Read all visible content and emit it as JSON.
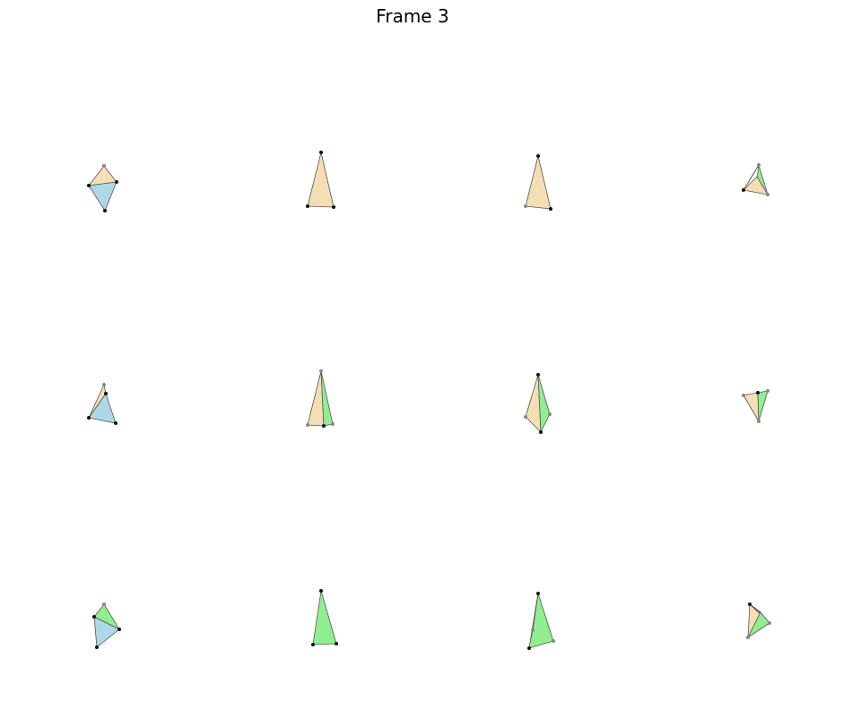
{
  "figure": {
    "title": "Frame 3"
  },
  "palette": {
    "wheat": "#f5deb3",
    "lightblue": "#add8e6",
    "lightgreen": "#90ee90",
    "red": "#e06060",
    "dark_vertex": "#111111",
    "light_vertex": "#888888",
    "edge": "#555555"
  },
  "panels": [
    {
      "name": "r1c1",
      "faces": [
        {
          "color": "wheat",
          "pts": [
            [
              99,
              207
            ],
            [
              116,
              185
            ],
            [
              130,
              203
            ]
          ]
        },
        {
          "color": "lightblue",
          "pts": [
            [
              99,
              207
            ],
            [
              130,
              203
            ],
            [
              117,
              235
            ]
          ]
        }
      ],
      "vertices": [
        [
          99,
          207,
          "d"
        ],
        [
          116,
          185,
          "l"
        ],
        [
          130,
          203,
          "d"
        ],
        [
          117,
          235,
          "d"
        ]
      ]
    },
    {
      "name": "r1c2",
      "faces": [
        {
          "color": "wheat",
          "pts": [
            [
              358,
              170
            ],
            [
              343,
              230
            ],
            [
              372,
              231
            ]
          ]
        }
      ],
      "vertices": [
        [
          358,
          170,
          "d"
        ],
        [
          343,
          230,
          "d"
        ],
        [
          372,
          231,
          "d"
        ]
      ]
    },
    {
      "name": "r1c3",
      "faces": [
        {
          "color": "wheat",
          "pts": [
            [
              600,
              174
            ],
            [
              586,
              230
            ],
            [
              614,
              233
            ]
          ]
        }
      ],
      "vertices": [
        [
          600,
          174,
          "d"
        ],
        [
          586,
          230,
          "l"
        ],
        [
          614,
          233,
          "d"
        ]
      ]
    },
    {
      "name": "r1c4",
      "faces": [
        {
          "color": "red",
          "pts": [
            [
              829,
              212
            ],
            [
              846,
              184
            ],
            [
              839,
              196
            ]
          ]
        },
        {
          "color": "lightgreen",
          "pts": [
            [
              846,
              184
            ],
            [
              856,
              217
            ],
            [
              844,
              200
            ]
          ]
        },
        {
          "color": "wheat",
          "pts": [
            [
              829,
              212
            ],
            [
              844,
              197
            ],
            [
              856,
              217
            ]
          ]
        }
      ],
      "vertices": [
        [
          829,
          212,
          "d"
        ],
        [
          846,
          184,
          "l"
        ],
        [
          856,
          217,
          "l"
        ]
      ]
    },
    {
      "name": "r2c1",
      "faces": [
        {
          "color": "wheat",
          "pts": [
            [
              99,
              466
            ],
            [
              116,
              429
            ],
            [
              118,
              439
            ]
          ]
        },
        {
          "color": "lightblue",
          "pts": [
            [
              99,
              466
            ],
            [
              118,
              439
            ],
            [
              129,
              472
            ]
          ]
        }
      ],
      "vertices": [
        [
          99,
          466,
          "d"
        ],
        [
          116,
          429,
          "l"
        ],
        [
          118,
          439,
          "d"
        ],
        [
          129,
          472,
          "d"
        ]
      ]
    },
    {
      "name": "r2c2",
      "faces": [
        {
          "color": "wheat",
          "pts": [
            [
              358,
              414
            ],
            [
              343,
              474
            ],
            [
              361,
              475
            ]
          ]
        },
        {
          "color": "lightgreen",
          "pts": [
            [
              358,
              414
            ],
            [
              361,
              475
            ],
            [
              371,
              473
            ]
          ]
        }
      ],
      "vertices": [
        [
          358,
          414,
          "l"
        ],
        [
          343,
          474,
          "l"
        ],
        [
          361,
          475,
          "d"
        ],
        [
          371,
          473,
          "l"
        ]
      ]
    },
    {
      "name": "r2c3",
      "faces": [
        {
          "color": "wheat",
          "pts": [
            [
              600,
              418
            ],
            [
              586,
              465
            ],
            [
              603,
              482
            ]
          ]
        },
        {
          "color": "lightgreen",
          "pts": [
            [
              600,
              418
            ],
            [
              603,
              482
            ],
            [
              613,
              462
            ]
          ]
        }
      ],
      "vertices": [
        [
          600,
          418,
          "d"
        ],
        [
          586,
          465,
          "l"
        ],
        [
          603,
          482,
          "d"
        ],
        [
          613,
          462,
          "l"
        ]
      ]
    },
    {
      "name": "r2c4",
      "faces": [
        {
          "color": "wheat",
          "pts": [
            [
              829,
              441
            ],
            [
              845,
              438
            ],
            [
              846,
              470
            ]
          ]
        },
        {
          "color": "lightgreen",
          "pts": [
            [
              845,
              438
            ],
            [
              856,
              436
            ],
            [
              846,
              470
            ]
          ]
        }
      ],
      "vertices": [
        [
          829,
          441,
          "l"
        ],
        [
          845,
          438,
          "d"
        ],
        [
          856,
          436,
          "l"
        ],
        [
          846,
          470,
          "l"
        ]
      ]
    },
    {
      "name": "r3c1",
      "faces": [
        {
          "color": "lightgreen",
          "pts": [
            [
              105,
              688
            ],
            [
              116,
              674
            ],
            [
              133,
              702
            ]
          ]
        },
        {
          "color": "lightblue",
          "pts": [
            [
              105,
              688
            ],
            [
              133,
              702
            ],
            [
              108,
              722
            ]
          ]
        }
      ],
      "vertices": [
        [
          105,
          688,
          "d"
        ],
        [
          116,
          674,
          "l"
        ],
        [
          133,
          702,
          "d"
        ],
        [
          108,
          722,
          "d"
        ]
      ]
    },
    {
      "name": "r3c2",
      "faces": [
        {
          "color": "lightgreen",
          "pts": [
            [
              358,
              659
            ],
            [
              349,
              719
            ],
            [
              375,
              718
            ]
          ]
        }
      ],
      "vertices": [
        [
          358,
          659,
          "d"
        ],
        [
          349,
          719,
          "d"
        ],
        [
          375,
          718,
          "d"
        ]
      ]
    },
    {
      "name": "r3c3",
      "faces": [
        {
          "color": "lightgreen",
          "pts": [
            [
              600,
              662
            ],
            [
              590,
              723
            ],
            [
              617,
              715
            ]
          ]
        },
        {
          "color": "wheat",
          "pts": [
            [
              600,
              662
            ],
            [
              594,
              703
            ],
            [
              592,
              712
            ]
          ]
        }
      ],
      "vertices": [
        [
          600,
          662,
          "d"
        ],
        [
          590,
          723,
          "d"
        ],
        [
          617,
          715,
          "l"
        ],
        [
          594,
          703,
          "l"
        ]
      ]
    },
    {
      "name": "r3c4",
      "faces": [
        {
          "color": "wheat",
          "pts": [
            [
              836,
              674
            ],
            [
              834,
              711
            ],
            [
              848,
              683
            ]
          ]
        },
        {
          "color": "red",
          "pts": [
            [
              836,
              674
            ],
            [
              848,
              683
            ],
            [
              858,
              695
            ]
          ]
        },
        {
          "color": "lightgreen",
          "pts": [
            [
              848,
              683
            ],
            [
              858,
              695
            ],
            [
              834,
              711
            ]
          ]
        }
      ],
      "vertices": [
        [
          836,
          674,
          "d"
        ],
        [
          834,
          711,
          "l"
        ],
        [
          858,
          695,
          "l"
        ]
      ]
    }
  ]
}
